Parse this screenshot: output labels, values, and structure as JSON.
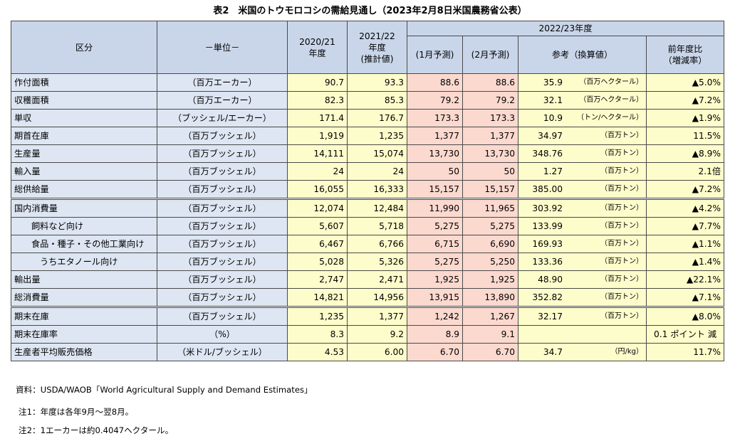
{
  "title": "表2　米国のトウモロコシの需給見通し（2023年2月8日米国農務省公表）",
  "headers": {
    "category": "区分",
    "unit": "－単位－",
    "y2020_line1": "2020/21",
    "y2020_line2": "年度",
    "y2021_line1": "2021/22",
    "y2021_line2": "年度",
    "y2021_line3": "(推計値)",
    "y2022": "2022/23年度",
    "jan": "(1月予測)",
    "feb": "(2月予測)",
    "ref": "参考（換算値）",
    "chg_line1": "前年度比",
    "chg_line2": "（増減率）"
  },
  "rows": [
    {
      "label": "作付面積",
      "unit": "（百万エーカー）",
      "v2020": "90.7",
      "v2021": "93.3",
      "jan": "88.6",
      "feb": "88.6",
      "ref": "35.9",
      "ref_unit": "（百万ヘクタール）",
      "chg": "▲5.0%"
    },
    {
      "label": "収穫面積",
      "unit": "（百万エーカー）",
      "v2020": "82.3",
      "v2021": "85.3",
      "jan": "79.2",
      "feb": "79.2",
      "ref": "32.1",
      "ref_unit": "（百万ヘクタール）",
      "chg": "▲7.2%"
    },
    {
      "label": "単収",
      "unit": "（ブッシェル/エーカー）",
      "v2020": "171.4",
      "v2021": "176.7",
      "jan": "173.3",
      "feb": "173.3",
      "ref": "10.9",
      "ref_unit": "（トン/ヘクタール）",
      "chg": "▲1.9%"
    },
    {
      "label": "期首在庫",
      "unit": "（百万ブッシェル）",
      "v2020": "1,919",
      "v2021": "1,235",
      "jan": "1,377",
      "feb": "1,377",
      "ref": "34.97",
      "ref_unit": "（百万トン）",
      "chg": "11.5%"
    },
    {
      "label": "生産量",
      "unit": "（百万ブッシェル）",
      "v2020": "14,111",
      "v2021": "15,074",
      "jan": "13,730",
      "feb": "13,730",
      "ref": "348.76",
      "ref_unit": "（百万トン）",
      "chg": "▲8.9%"
    },
    {
      "label": "輸入量",
      "unit": "（百万ブッシェル）",
      "v2020": "24",
      "v2021": "24",
      "jan": "50",
      "feb": "50",
      "ref": "1.27",
      "ref_unit": "（百万トン）",
      "chg": "2.1倍"
    },
    {
      "label": "総供給量",
      "unit": "（百万ブッシェル）",
      "v2020": "16,055",
      "v2021": "16,333",
      "jan": "15,157",
      "feb": "15,157",
      "ref": "385.00",
      "ref_unit": "（百万トン）",
      "chg": "▲7.2%"
    },
    {
      "label": "国内消費量",
      "unit": "（百万ブッシェル）",
      "v2020": "12,074",
      "v2021": "12,484",
      "jan": "11,990",
      "feb": "11,965",
      "ref": "303.92",
      "ref_unit": "（百万トン）",
      "chg": "▲4.2%"
    },
    {
      "label": "飼料など向け",
      "unit": "（百万ブッシェル）",
      "v2020": "5,607",
      "v2021": "5,718",
      "jan": "5,275",
      "feb": "5,275",
      "ref": "133.99",
      "ref_unit": "（百万トン）",
      "chg": "▲7.7%"
    },
    {
      "label": "食品・種子・その他工業向け",
      "unit": "（百万ブッシェル）",
      "v2020": "6,467",
      "v2021": "6,766",
      "jan": "6,715",
      "feb": "6,690",
      "ref": "169.93",
      "ref_unit": "（百万トン）",
      "chg": "▲1.1%"
    },
    {
      "label": "うちエタノール向け",
      "unit": "（百万ブッシェル）",
      "v2020": "5,028",
      "v2021": "5,326",
      "jan": "5,275",
      "feb": "5,250",
      "ref": "133.36",
      "ref_unit": "（百万トン）",
      "chg": "▲1.4%"
    },
    {
      "label": "輸出量",
      "unit": "（百万ブッシェル）",
      "v2020": "2,747",
      "v2021": "2,471",
      "jan": "1,925",
      "feb": "1,925",
      "ref": "48.90",
      "ref_unit": "（百万トン）",
      "chg": "▲22.1%"
    },
    {
      "label": "総消費量",
      "unit": "（百万ブッシェル）",
      "v2020": "14,821",
      "v2021": "14,956",
      "jan": "13,915",
      "feb": "13,890",
      "ref": "352.82",
      "ref_unit": "（百万トン）",
      "chg": "▲7.1%"
    },
    {
      "label": "期末在庫",
      "unit": "（百万ブッシェル）",
      "v2020": "1,235",
      "v2021": "1,377",
      "jan": "1,242",
      "feb": "1,267",
      "ref": "32.17",
      "ref_unit": "（百万トン）",
      "chg": "▲8.0%"
    },
    {
      "label": "期末在庫率",
      "unit": "（%）",
      "v2020": "8.3",
      "v2021": "9.2",
      "jan": "8.9",
      "feb": "9.1",
      "merged": "0.1 ポイント 減"
    },
    {
      "label": "生産者平均販売価格",
      "unit": "（米ドル/ブッシェル）",
      "v2020": "4.53",
      "v2021": "6.00",
      "jan": "6.70",
      "feb": "6.70",
      "ref": "34.7",
      "ref_unit": "（円/kg）",
      "chg": "11.7%"
    }
  ],
  "notes": {
    "source": "資料：USDA/WAOB「World Agricultural Supply and Demand Estimates」",
    "note1": "注1：年度は各年9月～翌8月。",
    "note2": "注2：1エーカーは約0.4047ヘクタール。"
  }
}
